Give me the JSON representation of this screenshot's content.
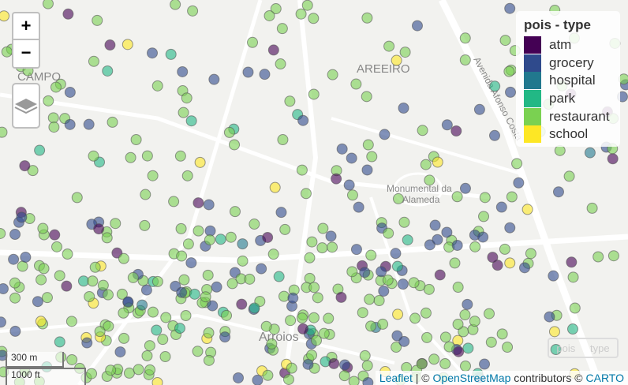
{
  "map": {
    "labels": {
      "district_1": "CAMPO",
      "district_2": "AREEIRO",
      "street": "Avenida Afonso Costa",
      "monument_1": "Monumental da",
      "monument_2": "Alameda",
      "district_3": "Arroios"
    },
    "zoom_in": "+",
    "zoom_out": "−",
    "legend": {
      "title": "pois - type",
      "items": [
        {
          "name": "atm",
          "color": "#440154"
        },
        {
          "name": "grocery",
          "color": "#2f4a8c"
        },
        {
          "name": "hospital",
          "color": "#21788e"
        },
        {
          "name": "park",
          "color": "#22b885"
        },
        {
          "name": "restaurant",
          "color": "#7ad151"
        },
        {
          "name": "school",
          "color": "#fde725"
        }
      ]
    },
    "layer_toggle": {
      "left": "pois",
      "right": "type"
    },
    "scale": {
      "metric": "300 m",
      "imperial": "1000 ft"
    },
    "attribution": {
      "leaflet": "Leaflet",
      "sep": "| ©",
      "osm": "OpenStreetMap",
      "mid": "contributors ©",
      "carto": "CARTO"
    }
  }
}
